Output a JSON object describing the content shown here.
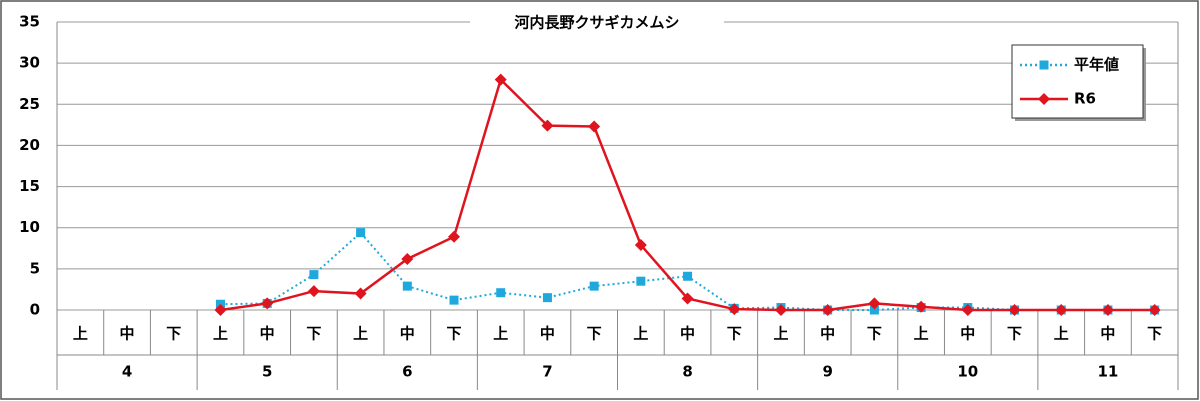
{
  "chart_data": {
    "type": "line",
    "title": "河内長野クサギカメムシ",
    "categories": [
      "上",
      "中",
      "下",
      "上",
      "中",
      "下",
      "上",
      "中",
      "下",
      "上",
      "中",
      "下",
      "上",
      "中",
      "下",
      "上",
      "中",
      "下",
      "上",
      "中",
      "下",
      "上",
      "中",
      "下"
    ],
    "groups": [
      "4",
      "5",
      "6",
      "7",
      "8",
      "9",
      "10",
      "11"
    ],
    "series": [
      {
        "name": "平年値",
        "color": "#1fa8dc",
        "line_style": "dotted",
        "marker": "square",
        "values": [
          null,
          null,
          null,
          0.7,
          0.8,
          4.3,
          9.4,
          2.9,
          1.2,
          2.1,
          1.5,
          2.9,
          3.5,
          4.1,
          0.2,
          0.3,
          0,
          0,
          0.3,
          0.3,
          0,
          0,
          0,
          0
        ]
      },
      {
        "name": "R6",
        "color": "#e0141e",
        "line_style": "solid",
        "marker": "diamond",
        "values": [
          null,
          null,
          null,
          0,
          0.8,
          2.3,
          2.0,
          6.2,
          8.9,
          28.0,
          22.4,
          22.3,
          7.9,
          1.4,
          0.1,
          0,
          0,
          0.8,
          0.4,
          0,
          0,
          0,
          0,
          0
        ]
      }
    ],
    "ylim": [
      0,
      35
    ],
    "yticks": [
      0,
      5,
      10,
      15,
      20,
      25,
      30,
      35
    ],
    "grid": true,
    "legend": "top-right"
  }
}
